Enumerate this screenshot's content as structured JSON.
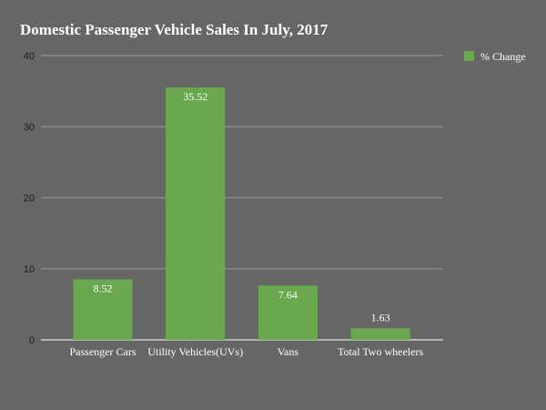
{
  "chart_data": {
    "type": "bar",
    "title": "Domestic Passenger Vehicle Sales In July, 2017",
    "categories": [
      "Passenger Cars",
      "Utility Vehicles(UVs)",
      "Vans",
      "Total Two wheelers"
    ],
    "series": [
      {
        "name": "% Change",
        "values": [
          8.52,
          35.52,
          7.64,
          1.63
        ],
        "color": "#6aa84f"
      }
    ],
    "data_labels": [
      "8.52",
      "35.52",
      "7.64",
      "1.63"
    ],
    "yticks": [
      "0",
      "10",
      "20",
      "30",
      "40"
    ],
    "ylim": [
      0,
      40
    ],
    "xlabel": "",
    "ylabel": "",
    "grid": true,
    "legend_position": "right",
    "colors": {
      "background": "#666666",
      "grid": "#9a9a9a",
      "baseline": "#ffffff"
    }
  }
}
